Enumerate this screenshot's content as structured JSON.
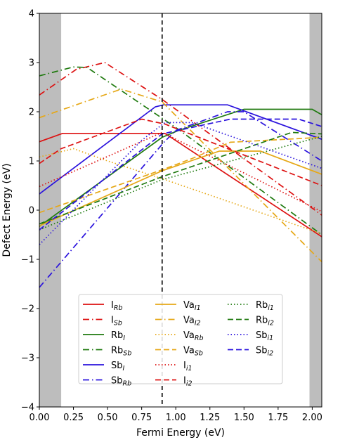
{
  "chart_data": {
    "type": "line",
    "title": "",
    "xlabel": "Fermi Energy (eV)",
    "ylabel": "Defect Energy (eV)",
    "xlim": [
      0,
      2.07
    ],
    "ylim": [
      -4,
      4
    ],
    "xticks": [
      "0.00",
      "0.25",
      "0.50",
      "0.75",
      "1.00",
      "1.25",
      "1.50",
      "1.75",
      "2.00"
    ],
    "yticks": [
      "−4",
      "−3",
      "−2",
      "−1",
      "0",
      "1",
      "2",
      "3",
      "4"
    ],
    "shaded_regions": [
      [
        0,
        0.16
      ],
      [
        1.98,
        2.07
      ]
    ],
    "fermi_level": 0.9,
    "legend_location": "lower-center",
    "legend_columns": 3,
    "series": [
      {
        "label": "I",
        "sub": "Rb",
        "color": "#dd1111",
        "dash": "solid",
        "points": [
          [
            0,
            1.39
          ],
          [
            0.17,
            1.56
          ],
          [
            0.92,
            1.56
          ],
          [
            2.07,
            -0.54
          ]
        ]
      },
      {
        "label": "I",
        "sub": "Sb",
        "color": "#dd1111",
        "dash": "dashdot",
        "points": [
          [
            0,
            2.34
          ],
          [
            0.27,
            2.86
          ],
          [
            0.48,
            3.0
          ],
          [
            0.9,
            2.25
          ],
          [
            2.07,
            -0.1
          ]
        ]
      },
      {
        "label": "Rb",
        "sub": "I",
        "color": "#1f7a0f",
        "dash": "solid",
        "points": [
          [
            0,
            -0.33
          ],
          [
            0.9,
            1.48
          ],
          [
            1.02,
            1.62
          ],
          [
            1.5,
            2.05
          ],
          [
            2.0,
            2.05
          ],
          [
            2.07,
            1.94
          ]
        ]
      },
      {
        "label": "Rb",
        "sub": "Sb",
        "color": "#1f7a0f",
        "dash": "dashdot",
        "points": [
          [
            0,
            2.73
          ],
          [
            0.25,
            2.91
          ],
          [
            0.35,
            2.9
          ],
          [
            1.0,
            1.68
          ],
          [
            2.07,
            -0.5
          ]
        ]
      },
      {
        "label": "Sb",
        "sub": "I",
        "color": "#2a12dd",
        "dash": "solid",
        "points": [
          [
            0,
            0.33
          ],
          [
            0.85,
            2.1
          ],
          [
            0.91,
            2.14
          ],
          [
            1.38,
            2.14
          ],
          [
            2.07,
            1.44
          ]
        ]
      },
      {
        "label": "Sb",
        "sub": "Rb",
        "color": "#2a12dd",
        "dash": "dashdot",
        "points": [
          [
            0,
            -1.57
          ],
          [
            0.91,
            1.37
          ],
          [
            1.0,
            1.62
          ],
          [
            1.38,
            2.0
          ],
          [
            1.5,
            2.0
          ],
          [
            2.07,
            1.0
          ]
        ]
      },
      {
        "label": "Va",
        "sub": "I1",
        "color": "#e6a817",
        "dash": "solid",
        "points": [
          [
            0,
            -0.32
          ],
          [
            0.9,
            0.8
          ],
          [
            1.32,
            1.2
          ],
          [
            1.62,
            1.2
          ],
          [
            2.07,
            0.73
          ]
        ]
      },
      {
        "label": "Va",
        "sub": "I2",
        "color": "#e6a817",
        "dash": "dashdot",
        "points": [
          [
            0,
            1.88
          ],
          [
            0.6,
            2.46
          ],
          [
            0.9,
            2.2
          ],
          [
            2.07,
            -1.05
          ]
        ]
      },
      {
        "label": "Va",
        "sub": "Rb",
        "color": "#e6a817",
        "dash": "dotted",
        "points": [
          [
            0,
            1.08
          ],
          [
            0.25,
            1.25
          ],
          [
            0.5,
            1.0
          ],
          [
            0.9,
            0.64
          ],
          [
            2.07,
            -0.48
          ]
        ]
      },
      {
        "label": "Va",
        "sub": "Sb",
        "color": "#e6a817",
        "dash": "dashed",
        "points": [
          [
            0,
            -0.05
          ],
          [
            0.9,
            0.82
          ],
          [
            1.12,
            1.05
          ],
          [
            1.4,
            1.38
          ],
          [
            2.07,
            1.48
          ]
        ]
      },
      {
        "label": "I",
        "sub": "i1",
        "color": "#dd1111",
        "dash": "dotted",
        "points": [
          [
            0,
            0.48
          ],
          [
            0.9,
            1.58
          ],
          [
            2.07,
            -0.03
          ]
        ]
      },
      {
        "label": "I",
        "sub": "i2",
        "color": "#dd1111",
        "dash": "dashed",
        "points": [
          [
            0,
            0.95
          ],
          [
            0.16,
            1.25
          ],
          [
            0.75,
            1.85
          ],
          [
            0.92,
            1.75
          ],
          [
            2.07,
            0.5
          ]
        ]
      },
      {
        "label": "Rb",
        "sub": "i1",
        "color": "#1f7a0f",
        "dash": "dotted",
        "points": [
          [
            0,
            -0.4
          ],
          [
            0.9,
            0.62
          ],
          [
            2.07,
            1.5
          ]
        ]
      },
      {
        "label": "Rb",
        "sub": "i2",
        "color": "#1f7a0f",
        "dash": "dashed",
        "points": [
          [
            0,
            -0.28
          ],
          [
            0.9,
            0.68
          ],
          [
            1.85,
            1.58
          ],
          [
            2.07,
            1.55
          ]
        ]
      },
      {
        "label": "Sb",
        "sub": "i1",
        "color": "#2a12dd",
        "dash": "dotted",
        "points": [
          [
            0,
            -0.7
          ],
          [
            0.75,
            1.42
          ],
          [
            0.92,
            1.78
          ],
          [
            1.12,
            1.78
          ],
          [
            2.07,
            0.85
          ]
        ]
      },
      {
        "label": "Sb",
        "sub": "i2",
        "color": "#2a12dd",
        "dash": "dashed",
        "points": [
          [
            0,
            -0.4
          ],
          [
            0.9,
            1.55
          ],
          [
            1.4,
            1.85
          ],
          [
            1.9,
            1.85
          ],
          [
            2.07,
            1.7
          ]
        ]
      }
    ]
  }
}
